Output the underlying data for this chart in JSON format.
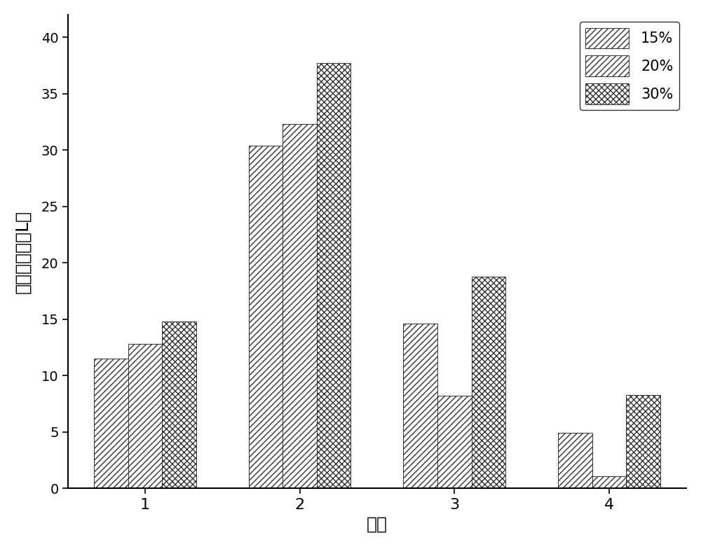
{
  "categories": [
    "1",
    "2",
    "3",
    "4"
  ],
  "series": {
    "15%": [
      11.5,
      30.4,
      14.6,
      4.9
    ],
    "20%": [
      12.8,
      32.3,
      8.2,
      1.1
    ],
    "30%": [
      14.8,
      37.7,
      18.8,
      8.3
    ]
  },
  "series_labels": [
    "15%",
    "20%",
    "30%"
  ],
  "xlabel": "周数",
  "ylabel": "周甲烷产量（L）",
  "ylim": [
    0,
    42
  ],
  "yticks": [
    0,
    5,
    10,
    15,
    20,
    25,
    30,
    35,
    40
  ],
  "xticks": [
    "1",
    "2",
    "3",
    "4"
  ],
  "bar_width": 0.22,
  "background_color": "#ffffff",
  "legend_loc": "upper right",
  "hatch_15": "////",
  "hatch_20": "////",
  "hatch_30": "xxxx"
}
